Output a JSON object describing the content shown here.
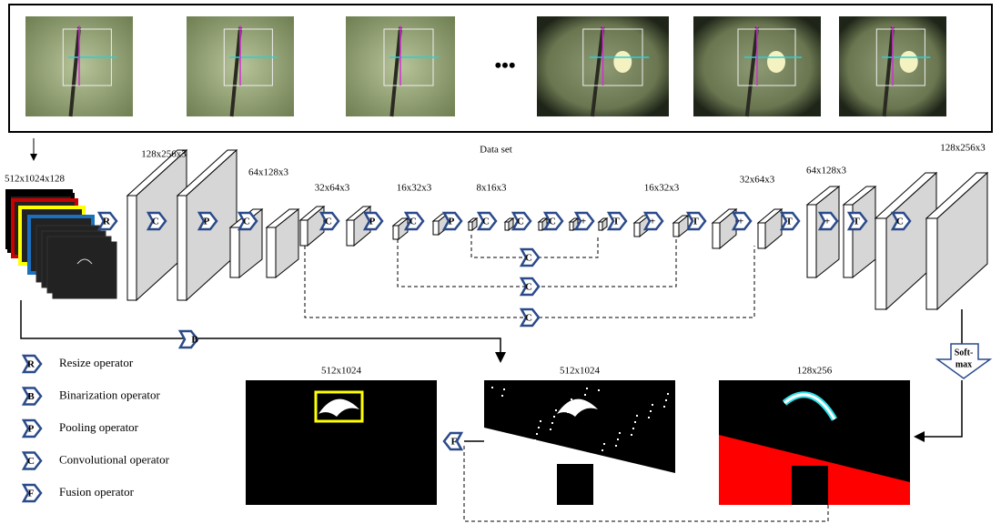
{
  "dataset": {
    "caption": "Data set",
    "ellipsis": "•••"
  },
  "input_size": "512x1024x128",
  "layer_sizes": [
    "128x256x3",
    "64x128x3",
    "32x64x3",
    "16x32x3",
    "8x16x3",
    "16x32x3",
    "32x64x3",
    "64x128x3",
    "128x256x3"
  ],
  "operators": [
    "R",
    "C",
    "P",
    "C",
    "C",
    "P",
    "C",
    "P",
    "C",
    "C",
    "C",
    "+",
    "T",
    "+",
    "T",
    "+",
    "T",
    "+",
    "T",
    "C"
  ],
  "skip_operators": [
    "C",
    "C",
    "C"
  ],
  "binarization": "B",
  "softmax": [
    "Soft-",
    "max"
  ],
  "fusion": "F",
  "outputs": [
    "512x1024",
    "512x1024",
    "128x256"
  ],
  "legend": [
    {
      "symbol": "R",
      "label": "Resize operator"
    },
    {
      "symbol": "B",
      "label": "Binarization operator"
    },
    {
      "symbol": "P",
      "label": "Pooling operator"
    },
    {
      "symbol": "C",
      "label": "Convolutional operator"
    },
    {
      "symbol": "F",
      "label": "Fusion operator"
    }
  ]
}
